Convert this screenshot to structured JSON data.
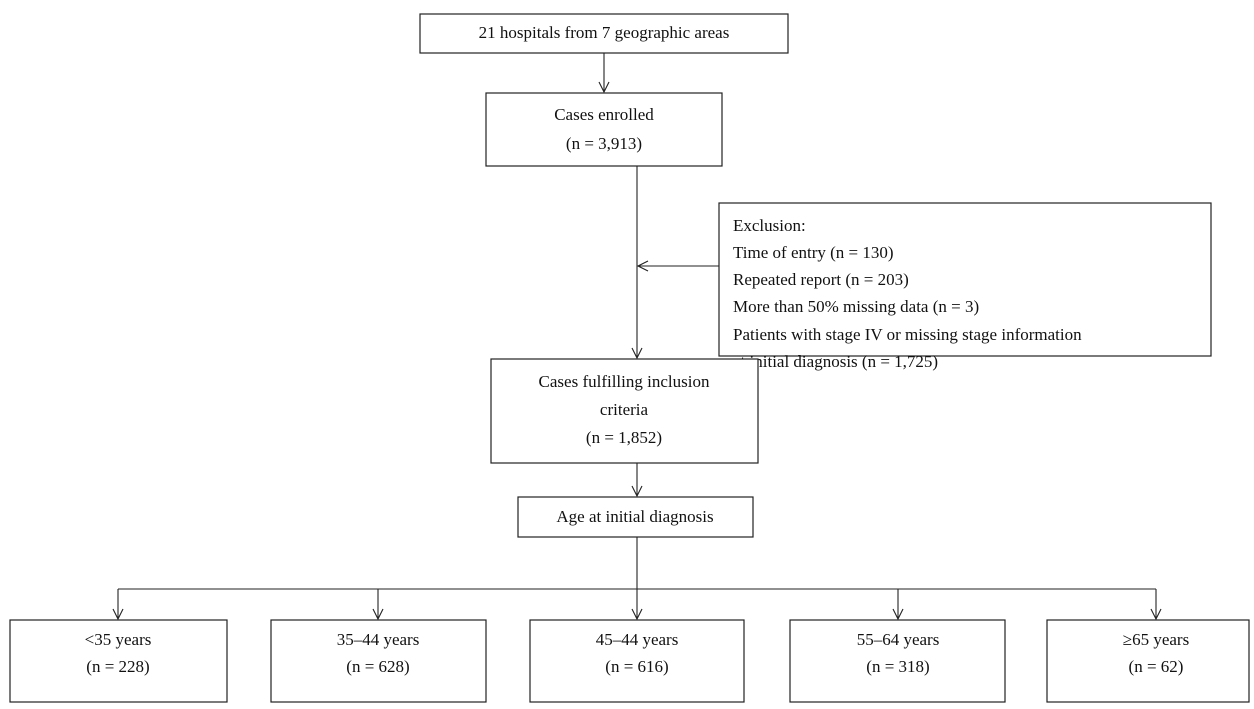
{
  "nodes": [
    {
      "lines": [
        "21 hospitals from 7 geographic areas"
      ]
    },
    {
      "lines": [
        "Cases enrolled",
        "(n = 3,913)"
      ]
    },
    {
      "lines": [
        "Exclusion:",
        "Time of entry (n = 130)",
        "Repeated report (n = 203)",
        "More than 50% missing data (n = 3)",
        "Patients with stage IV or missing stage information",
        "at initial diagnosis (n = 1,725)"
      ]
    },
    {
      "lines": [
        "Cases fulfilling inclusion",
        "criteria",
        "(n = 1,852)"
      ]
    },
    {
      "lines": [
        "Age at initial diagnosis"
      ]
    },
    {
      "lines": [
        "<35 years",
        "(n = 228)"
      ]
    },
    {
      "lines": [
        "35–44 years",
        "(n = 628)"
      ]
    },
    {
      "lines": [
        "45–44 years",
        "(n = 616)"
      ]
    },
    {
      "lines": [
        "55–64 years",
        "(n = 318)"
      ]
    },
    {
      "lines": [
        "≥65 years",
        "(n = 62)"
      ]
    }
  ]
}
